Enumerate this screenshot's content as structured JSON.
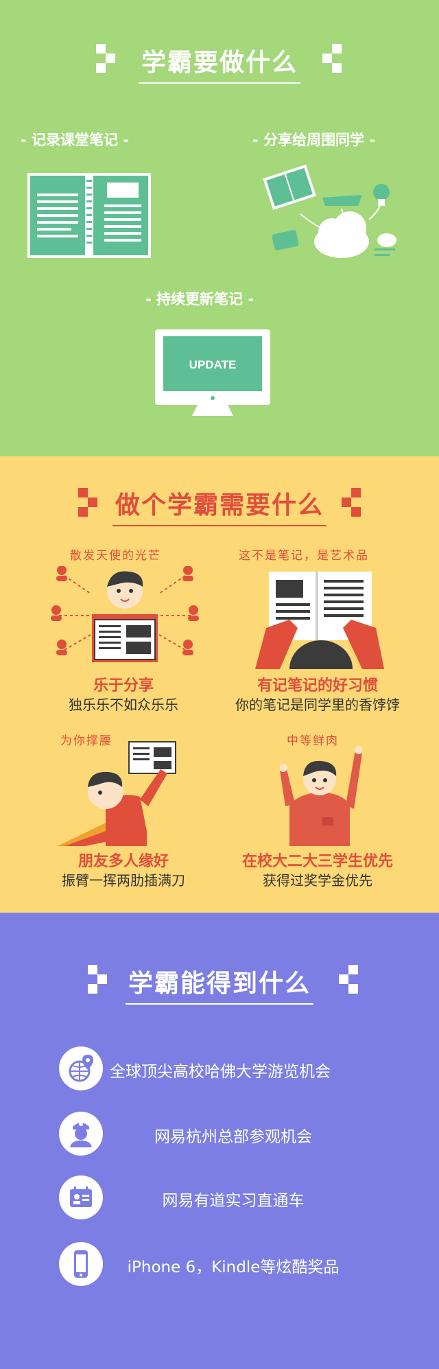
{
  "colors": {
    "green_bg": "#a4d87b",
    "yellow_bg": "#fdd876",
    "purple_bg": "#7c7ee3",
    "red_accent": "#e04e3c",
    "teal_accent": "#5fbf94"
  },
  "section1": {
    "title": "学霸要做什么",
    "items": [
      {
        "label": "- 记录课堂笔记 -",
        "icon": "notebook-icon"
      },
      {
        "label": "- 分享给周围同学 -",
        "icon": "share-cloud-icon"
      },
      {
        "label": "- 持续更新笔记 -",
        "icon": "monitor-icon"
      }
    ],
    "monitor_text": "UPDATE"
  },
  "section2": {
    "title": "做个学霸需要什么",
    "items": [
      {
        "hand": "散发天使的光芒",
        "title": "乐于分享",
        "sub": "独乐乐不如众乐乐"
      },
      {
        "hand": "这不是笔记，是艺术品",
        "title": "有记笔记的好习惯",
        "sub": "你的笔记是同学里的香饽饽"
      },
      {
        "hand": "为你撑腰",
        "title": "朋友多人缘好",
        "sub": "振臂一挥两肋插满刀"
      },
      {
        "hand": "中等鲜肉",
        "title": "在校大二大三学生优先",
        "sub": "获得过奖学金优先"
      }
    ]
  },
  "section3": {
    "title": "学霸能得到什么",
    "items": [
      {
        "icon": "globe-location-icon",
        "text": "全球顶尖高校哈佛大学游览机会"
      },
      {
        "icon": "guide-person-icon",
        "text": "网易杭州总部参观机会"
      },
      {
        "icon": "id-card-icon",
        "text": "网易有道实习直通车"
      },
      {
        "icon": "phone-icon",
        "text": "iPhone 6，Kindle等炫酷奖品"
      }
    ]
  }
}
